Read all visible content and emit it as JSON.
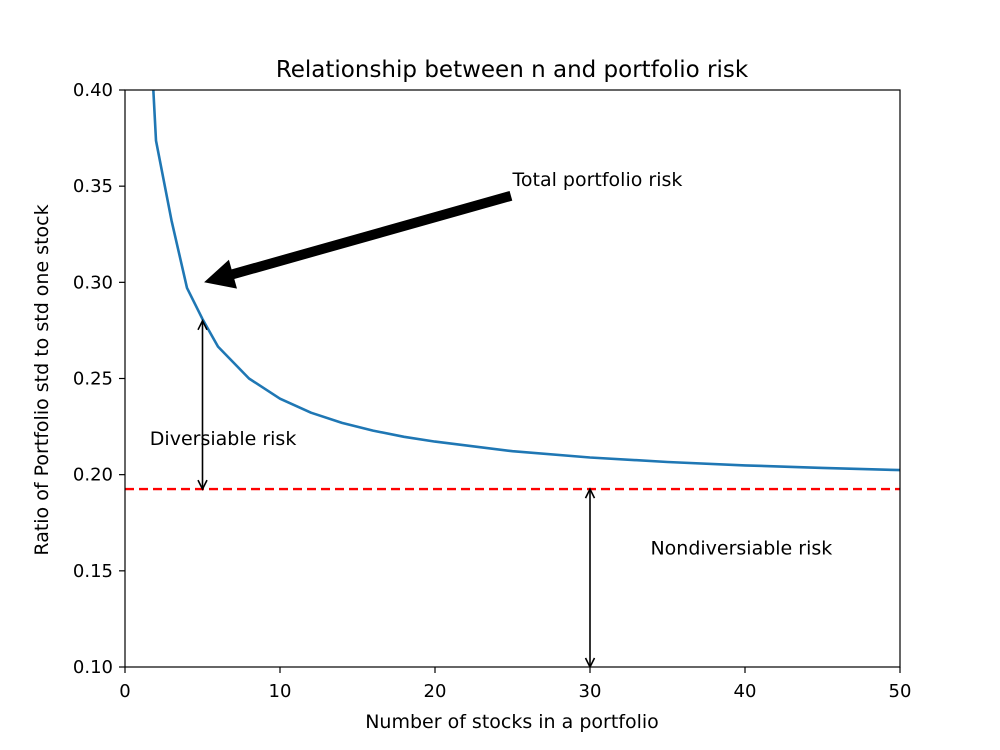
{
  "chart_data": {
    "type": "line",
    "title": "Relationship between n and portfolio risk",
    "xlabel": "Number of stocks in a portfolio",
    "ylabel": "Ratio of Portfolio std to std one stock",
    "xlim": [
      0,
      50
    ],
    "ylim": [
      0.1,
      0.4
    ],
    "x_ticks": [
      0,
      10,
      20,
      30,
      40,
      50
    ],
    "x_tick_labels": [
      "0",
      "10",
      "20",
      "30",
      "40",
      "50"
    ],
    "y_ticks": [
      0.1,
      0.15,
      0.2,
      0.25,
      0.3,
      0.35,
      0.4
    ],
    "y_tick_labels": [
      "0.10",
      "0.15",
      "0.20",
      "0.25",
      "0.30",
      "0.35",
      "0.40"
    ],
    "grid": false,
    "series": [
      {
        "color": "#1f77b4",
        "x": [
          1,
          2,
          3,
          4,
          5,
          6,
          8,
          10,
          12,
          14,
          16,
          18,
          20,
          25,
          30,
          35,
          40,
          45,
          50
        ],
        "y": [
          0.5269,
          0.3737,
          0.3322,
          0.2971,
          0.2809,
          0.2666,
          0.25,
          0.2395,
          0.2322,
          0.2269,
          0.2229,
          0.2197,
          0.2172,
          0.2122,
          0.2089,
          0.2066,
          0.2048,
          0.2035,
          0.2024
        ]
      }
    ],
    "reference_line": {
      "y": 0.1925,
      "color": "#ff0000",
      "style": "dashed"
    },
    "arrows": [
      {
        "label": "Total portfolio risk",
        "type": "fat",
        "from": [
          24.9,
          0.345
        ],
        "to": [
          5.1,
          0.3
        ]
      },
      {
        "label": "Diversiable risk",
        "type": "double",
        "x": 5,
        "y1": 0.1925,
        "y2": 0.28
      },
      {
        "label": "Nondiversiable risk",
        "type": "double",
        "x": 30,
        "y1": 0.1,
        "y2": 0.1925
      }
    ],
    "annotations": [
      {
        "text": "Total portfolio risk",
        "x": 25,
        "y": 0.35
      },
      {
        "text": "Diversiable risk",
        "x": 1.6,
        "y": 0.2155
      },
      {
        "text": "Nondiversiable risk",
        "x": 33.9,
        "y": 0.1585
      }
    ]
  }
}
